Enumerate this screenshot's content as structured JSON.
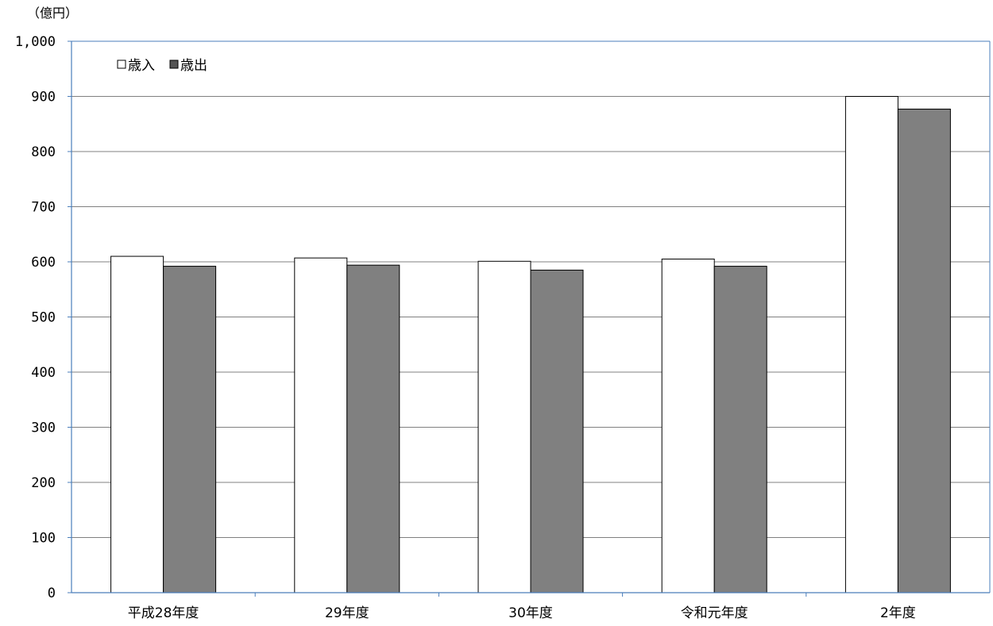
{
  "chart_data": {
    "type": "bar",
    "unit_label": "（億円）",
    "categories": [
      "平成28年度",
      "29年度",
      "30年度",
      "令和元年度",
      "2年度"
    ],
    "series": [
      {
        "name": "歳入",
        "values": [
          610,
          607,
          601,
          605,
          900
        ],
        "color": "#ffffff"
      },
      {
        "name": "歳出",
        "values": [
          592,
          594,
          585,
          592,
          877
        ],
        "color": "#808080"
      }
    ],
    "ylim": [
      0,
      1000
    ],
    "yticks": [
      0,
      100,
      200,
      300,
      400,
      500,
      600,
      700,
      800,
      900,
      1000
    ],
    "ytick_labels": [
      "0",
      "100",
      "200",
      "300",
      "400",
      "500",
      "600",
      "700",
      "800",
      "900",
      "1,000"
    ],
    "grid": true,
    "legend_position": "top-left",
    "axis_color": "#4a7ebb",
    "grid_color": "#808080"
  }
}
